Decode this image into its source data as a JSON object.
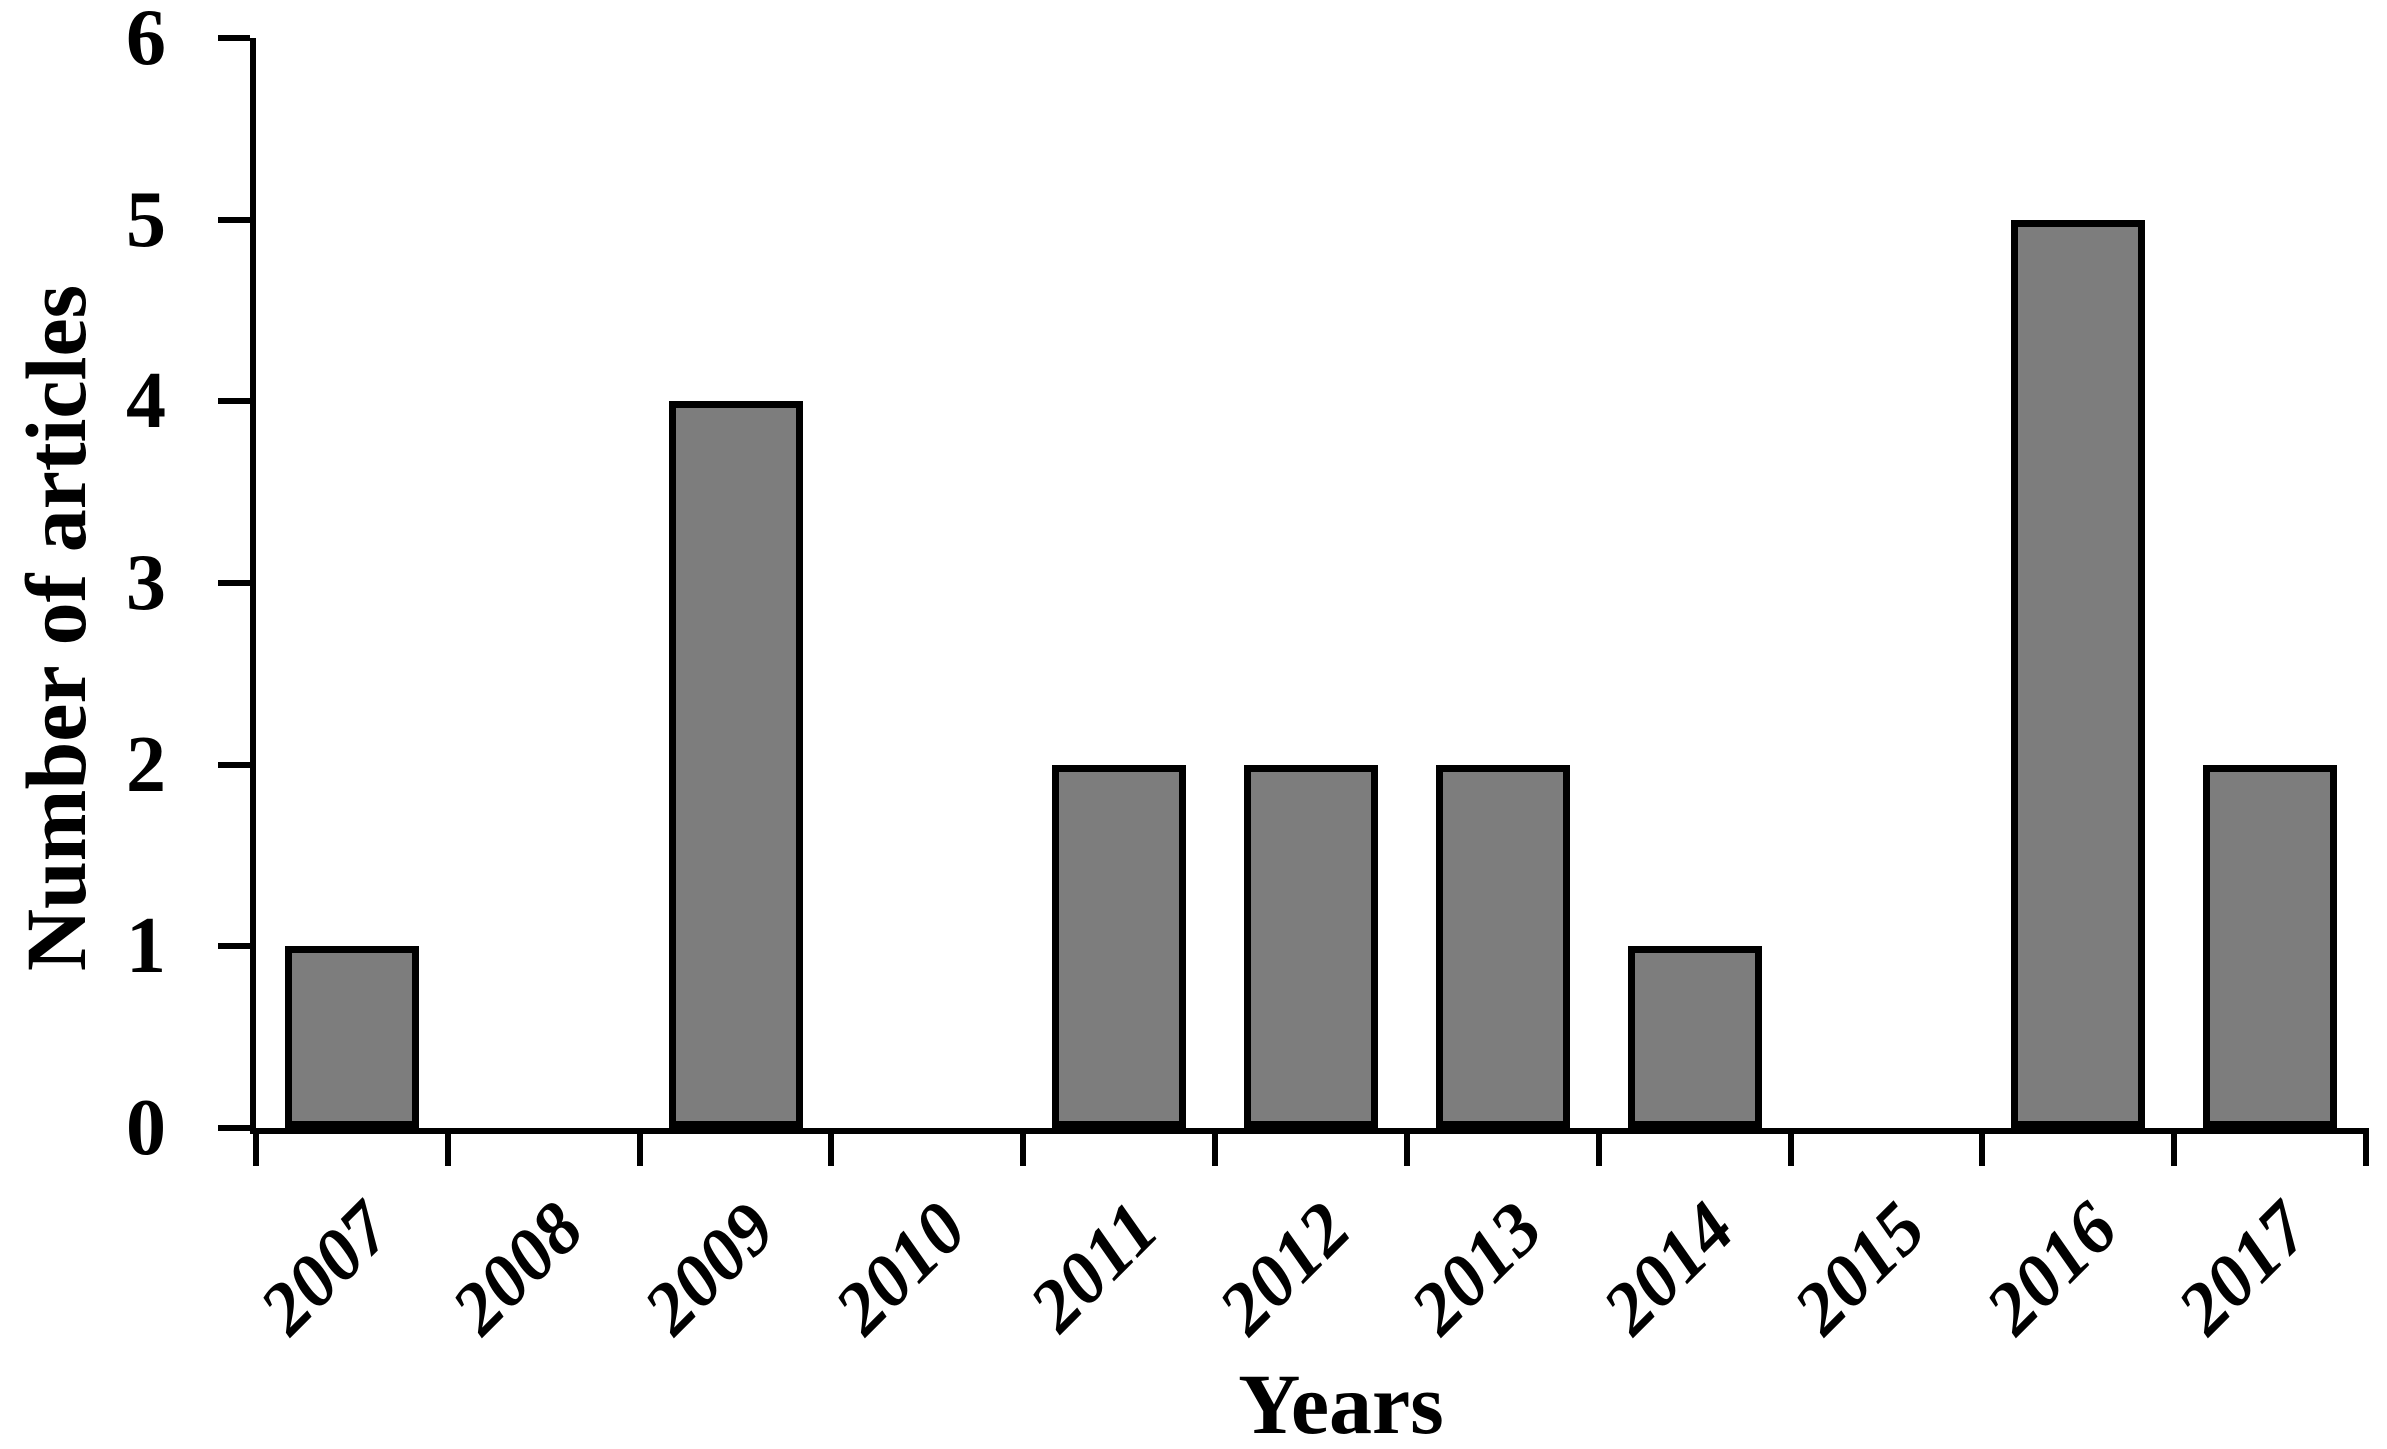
{
  "figure": {
    "background_color": "#ffffff",
    "text_color": "#000000"
  },
  "chart_data": {
    "type": "bar",
    "title": "",
    "categories": [
      "2007",
      "2008",
      "2009",
      "2010",
      "2011",
      "2012",
      "2013",
      "2014",
      "2015",
      "2016",
      "2017"
    ],
    "values": [
      1,
      0,
      4,
      0,
      2,
      2,
      2,
      1,
      0,
      5,
      2
    ],
    "xlabel": "Years",
    "ylabel": "Number of articles",
    "ylim": [
      0,
      6
    ],
    "yticks": [
      0,
      1,
      2,
      3,
      4,
      5,
      6
    ],
    "x_tick_label_rotation_deg": -45,
    "grid": false,
    "legend": false,
    "bar_fill_color": "#7d7d7d",
    "bar_border_color": "#000000",
    "axis_color": "#000000"
  }
}
